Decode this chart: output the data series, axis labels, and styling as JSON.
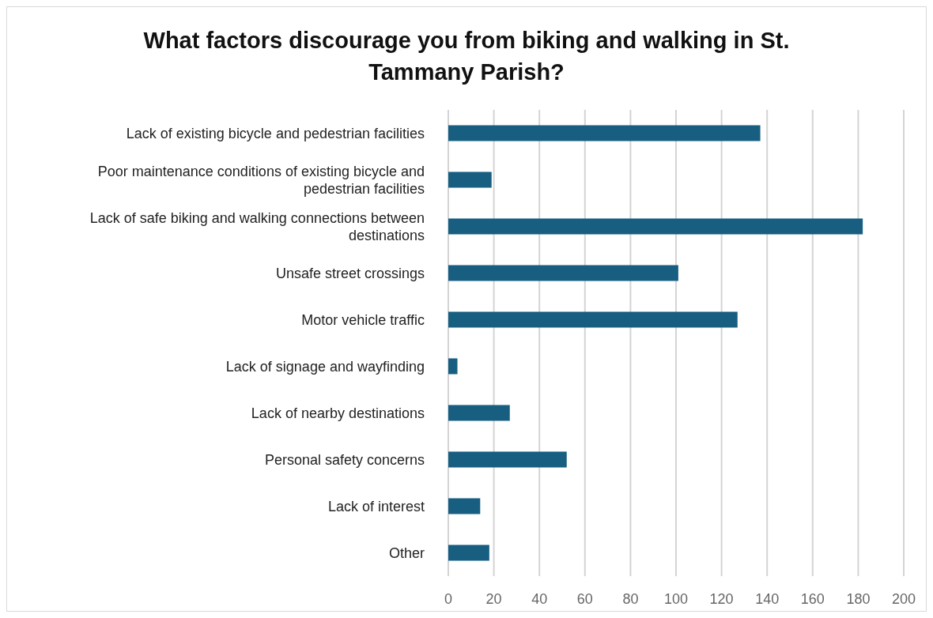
{
  "chart_data": {
    "type": "bar",
    "orientation": "horizontal",
    "title": "What factors discourage you from biking and walking in St. Tammany Parish?",
    "categories": [
      "Lack of existing bicycle and pedestrian facilities",
      "Poor maintenance conditions of existing bicycle and pedestrian facilities",
      "Lack of safe biking and walking connections between destinations",
      "Unsafe street crossings",
      "Motor vehicle traffic",
      "Lack of signage and wayfinding",
      "Lack of nearby destinations",
      "Personal safety concerns",
      "Lack of interest",
      "Other"
    ],
    "values": [
      137,
      19,
      182,
      101,
      127,
      4,
      27,
      52,
      14,
      18
    ],
    "color": "#175e81",
    "xlim": [
      0,
      200
    ],
    "xticks": [
      0,
      20,
      40,
      60,
      80,
      100,
      120,
      140,
      160,
      180,
      200
    ],
    "grid": "x"
  }
}
